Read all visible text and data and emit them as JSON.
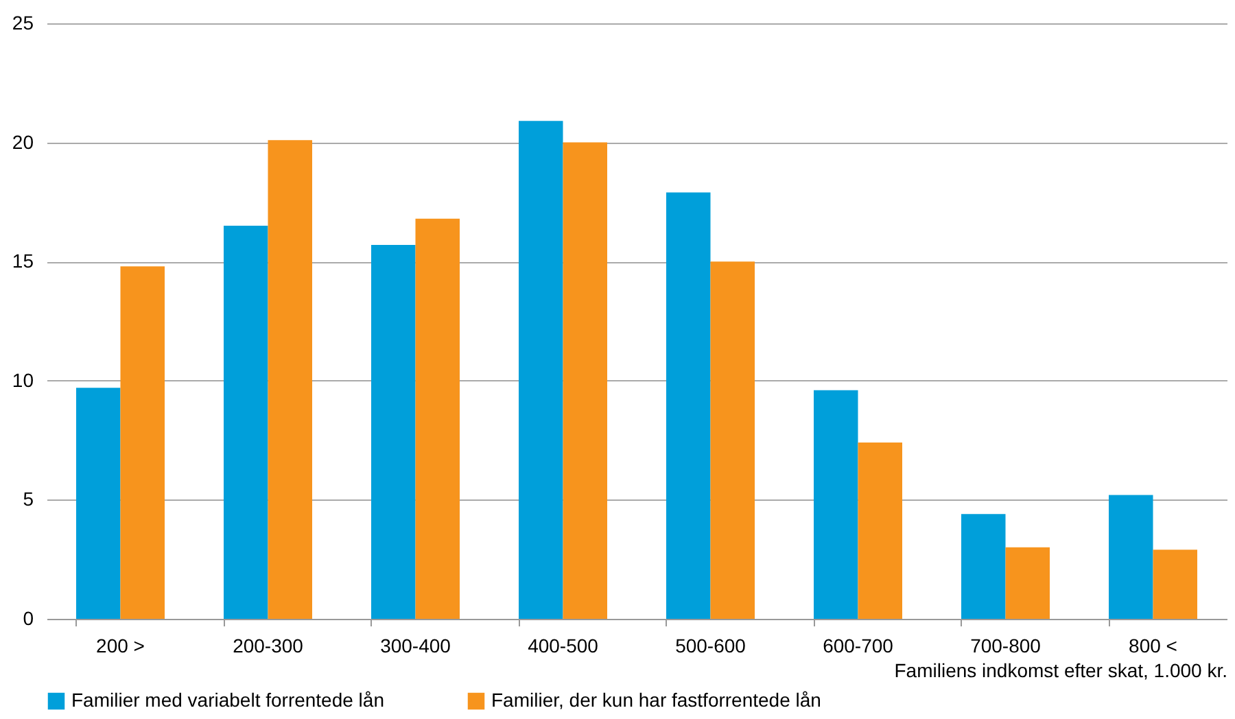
{
  "chart_data": {
    "type": "bar",
    "xlabel": "Familiens indkomst efter skat, 1.000 kr.",
    "categories": [
      "200 >",
      "200-300",
      "300-400",
      "400-500",
      "500-600",
      "600-700",
      "700-800",
      "800 <"
    ],
    "series": [
      {
        "name": "Familier med variabelt forrentede lån",
        "color": "#009fda",
        "values": [
          9.7,
          16.5,
          15.7,
          20.9,
          17.9,
          9.6,
          4.4,
          5.2
        ]
      },
      {
        "name": "Familier, der kun har fastforrentede lån",
        "color": "#f7941d",
        "values": [
          14.8,
          20.1,
          16.8,
          20.0,
          15.0,
          7.4,
          3.0,
          2.9
        ]
      }
    ],
    "ylim": [
      0,
      25
    ],
    "yticks": [
      0,
      5,
      10,
      15,
      20,
      25
    ],
    "grid": "y",
    "legend": "bottom left"
  }
}
